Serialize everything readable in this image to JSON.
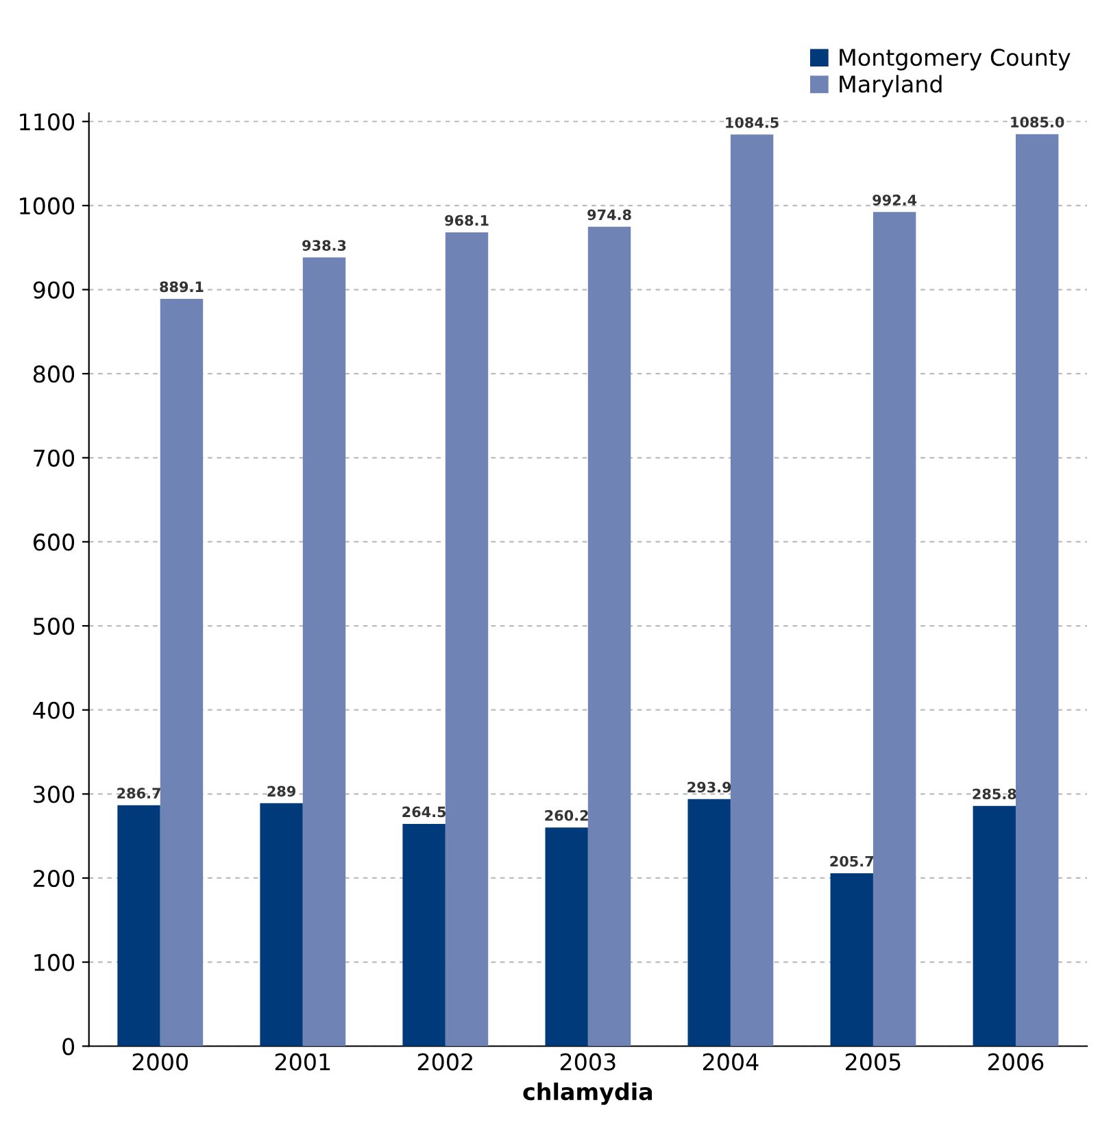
{
  "chart_data": {
    "type": "bar",
    "xlabel": "chlamydia",
    "categories": [
      "2000",
      "2001",
      "2002",
      "2003",
      "2004",
      "2005",
      "2006"
    ],
    "series": [
      {
        "name": "Montgomery County",
        "color": "#003a7a",
        "values": [
          286.7,
          289,
          264.5,
          260.2,
          293.9,
          205.7,
          285.8
        ],
        "value_labels": [
          "286.7",
          "289",
          "264.5",
          "260.2",
          "293.9",
          "205.7",
          "285.8"
        ]
      },
      {
        "name": "Maryland",
        "color": "#7083b5",
        "values": [
          889.1,
          938.3,
          968.1,
          974.8,
          1084.5,
          992.4,
          1085.0
        ],
        "value_labels": [
          "889.1",
          "938.3",
          "968.1",
          "974.8",
          "1084.5",
          "992.4",
          "1085.0"
        ]
      }
    ],
    "ylim": [
      0,
      1110
    ],
    "yticks": [
      0,
      100,
      200,
      300,
      400,
      500,
      600,
      700,
      800,
      900,
      1000,
      1100
    ],
    "grid": "y",
    "legend": "top right"
  }
}
